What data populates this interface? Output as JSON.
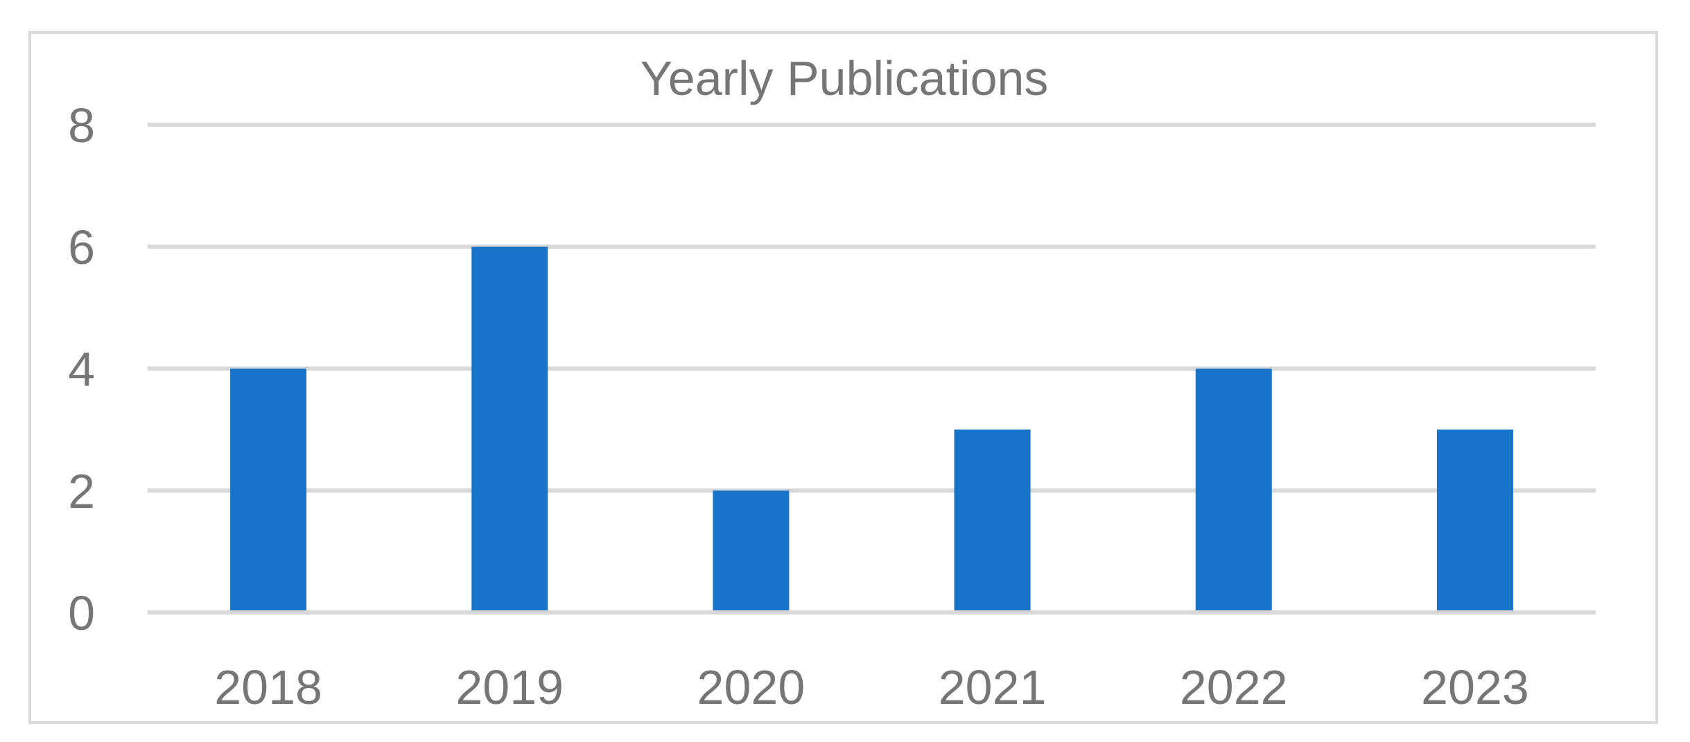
{
  "chart_data": {
    "type": "bar",
    "title": "Yearly Publications",
    "categories": [
      "2018",
      "2019",
      "2020",
      "2021",
      "2022",
      "2023"
    ],
    "values": [
      4,
      6,
      2,
      3,
      4,
      3
    ],
    "xlabel": "",
    "ylabel": "",
    "ylim": [
      0,
      8
    ],
    "yticks": [
      0,
      2,
      4,
      6,
      8
    ],
    "grid": true,
    "legend": "none",
    "colors": {
      "bar": "#1874C9",
      "grid": "#d9d9d9",
      "text": "#767676",
      "frame": "#d9d9d9"
    }
  }
}
